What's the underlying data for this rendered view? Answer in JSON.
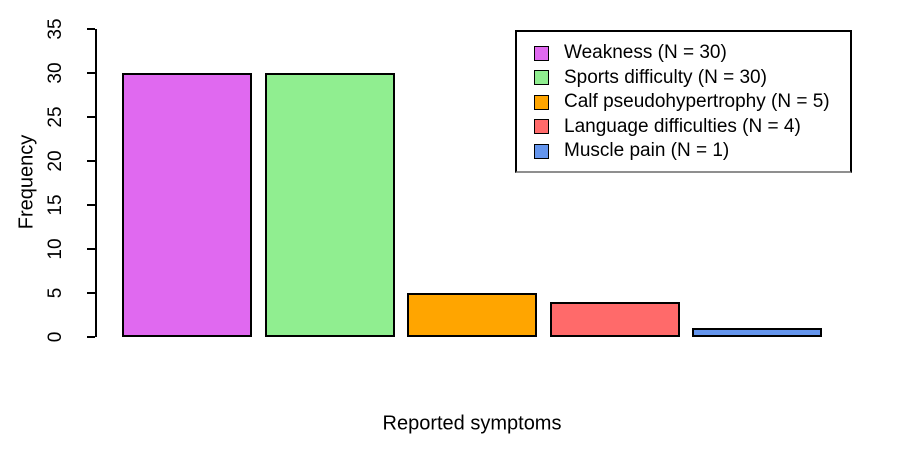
{
  "chart_data": {
    "type": "bar",
    "title": "",
    "xlabel": "Reported symptoms",
    "ylabel": "Frequency",
    "categories": [
      "Weakness",
      "Sports difficulty",
      "Calf pseudohypertrophy",
      "Language difficulties",
      "Muscle pain"
    ],
    "values": [
      30,
      30,
      5,
      4,
      1
    ],
    "bar_colors": [
      "#E069F0",
      "#90EE90",
      "#FFA500",
      "#FF6A6A",
      "#6495ED"
    ],
    "bar_border_color": "#000000",
    "ylim": [
      0,
      35
    ],
    "yticks": [
      0,
      5,
      10,
      15,
      20,
      25,
      30,
      35
    ],
    "grid": false,
    "axis_color": "#000000",
    "background_color": "#FFFFFF",
    "legend": {
      "position": "top-right",
      "entries": [
        {
          "label": "Weakness (N = 30)",
          "color": "#E069F0"
        },
        {
          "label": "Sports difficulty (N = 30)",
          "color": "#90EE90"
        },
        {
          "label": "Calf pseudohypertrophy (N = 5)",
          "color": "#FFA500"
        },
        {
          "label": "Language difficulties (N = 4)",
          "color": "#FF6A6A"
        },
        {
          "label": "Muscle pain (N = 1)",
          "color": "#6495ED"
        }
      ]
    }
  }
}
